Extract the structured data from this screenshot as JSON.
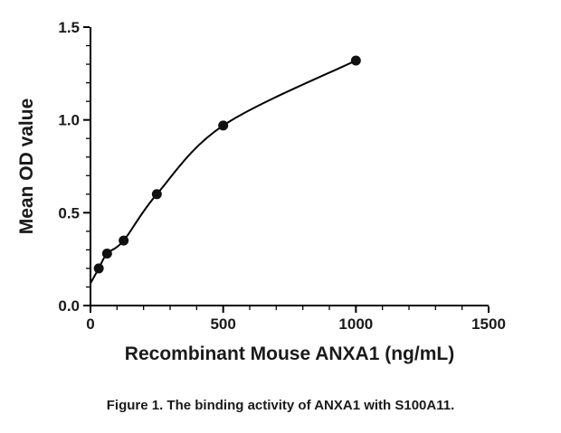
{
  "figure": {
    "caption": "Figure 1. The binding activity of ANXA1 with S100A11."
  },
  "chart_data": {
    "type": "scatter",
    "title": "",
    "xlabel": "Recombinant Mouse ANXA1 (ng/mL)",
    "ylabel": "Mean OD value",
    "xlim": [
      0,
      1500
    ],
    "ylim": [
      0,
      1.5
    ],
    "x_ticks": [
      0,
      500,
      1000,
      1500
    ],
    "y_ticks": [
      "0.0",
      "0.5",
      "1.0",
      "1.5"
    ],
    "x_minor_step": 100,
    "y_minor_step": 0.1,
    "grid": false,
    "legend": "none",
    "axis_color": "#000000",
    "text_color": "#1a1a1a",
    "background": "#ffffff",
    "series": [
      {
        "name": "ANXA1 binding to S100A11",
        "marker": "filled-circle",
        "color": "#111111",
        "line": "smooth-fit-curve",
        "x": [
          31.25,
          62.5,
          125,
          250,
          500,
          1000
        ],
        "y": [
          0.2,
          0.28,
          0.35,
          0.6,
          0.97,
          1.32
        ]
      }
    ],
    "fit_curve": {
      "description": "smooth saturation-binding curve through points, from y-axis intercept to last point",
      "start": {
        "x": 0,
        "y": 0.12
      }
    }
  }
}
